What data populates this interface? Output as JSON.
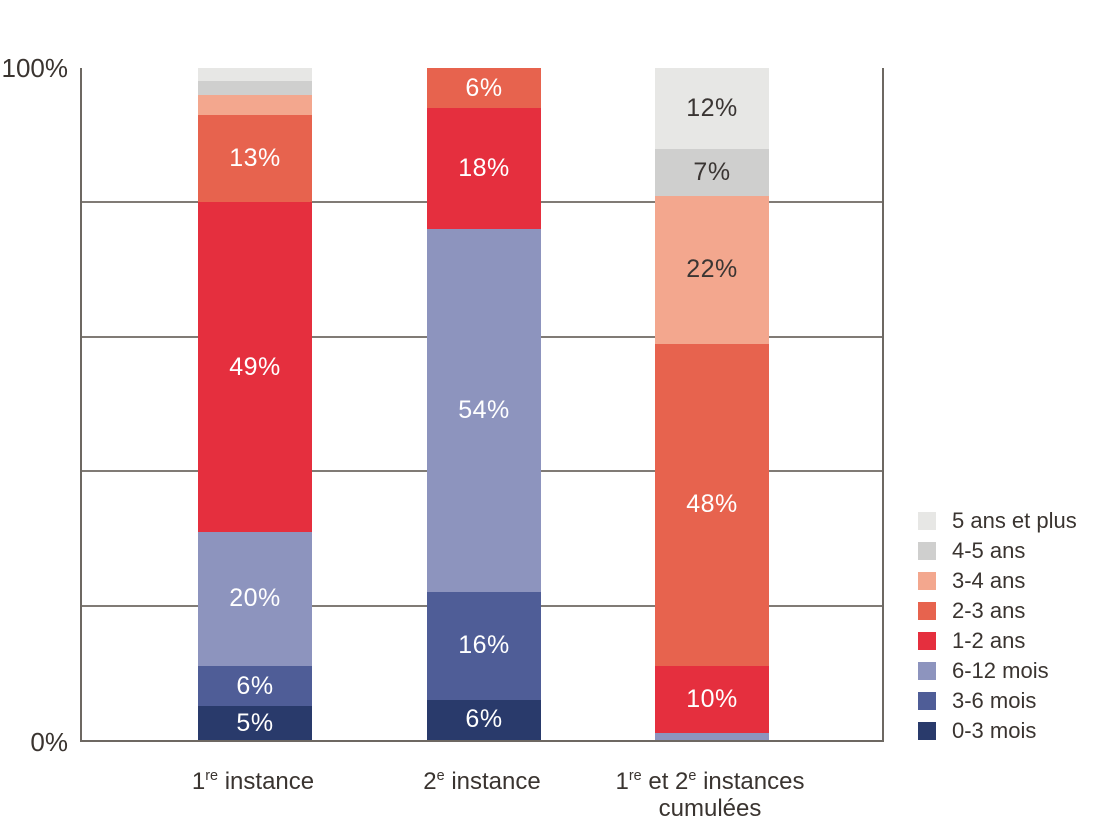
{
  "chart_data": {
    "type": "bar",
    "subtype": "stacked-100-percent",
    "title": "",
    "unit": "%",
    "grid": true,
    "legend_position": "right",
    "axis_color": "#6d6862",
    "grid_color": "#807b75",
    "text_color": "#3a3430",
    "label_min_value": 5,
    "yaxis": {
      "min": 0,
      "max": 100,
      "gridline_step": 20,
      "ticks": [
        {
          "label": "0%",
          "value": 0
        },
        {
          "label": "100%",
          "value": 100
        }
      ]
    },
    "categories": [
      {
        "name": "1re instance",
        "lines": [
          [
            {
              "text": "1"
            },
            {
              "text": "re",
              "sup": true
            },
            {
              "text": " instance"
            }
          ]
        ]
      },
      {
        "name": "2e instance",
        "lines": [
          [
            {
              "text": "2"
            },
            {
              "text": "e",
              "sup": true
            },
            {
              "text": " instance"
            }
          ]
        ]
      },
      {
        "name": "1re et 2e instances cumulées",
        "lines": [
          [
            {
              "text": "1"
            },
            {
              "text": "re",
              "sup": true
            },
            {
              "text": " et 2"
            },
            {
              "text": "e",
              "sup": true
            },
            {
              "text": " instances"
            }
          ],
          [
            {
              "text": "cumulées"
            }
          ]
        ]
      }
    ],
    "series": [
      {
        "name": "0-3 mois",
        "color": "#293a6b",
        "label_color": "#ffffff",
        "values": [
          5,
          6,
          0
        ]
      },
      {
        "name": "3-6 mois",
        "color": "#4f5d97",
        "label_color": "#ffffff",
        "values": [
          6,
          16,
          0
        ]
      },
      {
        "name": "6-12 mois",
        "color": "#8d94be",
        "label_color": "#ffffff",
        "values": [
          20,
          54,
          1
        ]
      },
      {
        "name": "1-2 ans",
        "color": "#e52f3e",
        "label_color": "#ffffff",
        "values": [
          49,
          18,
          10
        ]
      },
      {
        "name": "2-3 ans",
        "color": "#e7634e",
        "label_color": "#ffffff",
        "values": [
          13,
          6,
          48
        ]
      },
      {
        "name": "3-4 ans",
        "color": "#f3a78e",
        "label_color": "#3a3533",
        "values": [
          3,
          0,
          22
        ]
      },
      {
        "name": "4-5 ans",
        "color": "#cfcfce",
        "label_color": "#3a3533",
        "values": [
          2,
          0,
          7
        ]
      },
      {
        "name": "5 ans et plus",
        "color": "#e7e7e5",
        "label_color": "#3a3533",
        "values": [
          2,
          0,
          12
        ]
      }
    ],
    "stack_order": "bottom-to-top",
    "legend_order_note": "legend listed top-to-bottom is reverse of stack order"
  }
}
